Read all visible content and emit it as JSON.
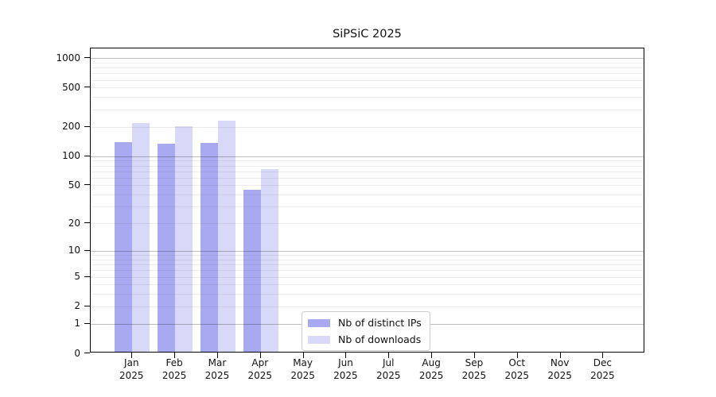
{
  "title": "SiPSiC 2025",
  "legend": {
    "items": [
      {
        "label": "Nb of distinct IPs",
        "color": "#a9a9f2"
      },
      {
        "label": "Nb of downloads",
        "color": "#d8d8f8"
      }
    ]
  },
  "axes": {
    "y_tick_labels": [
      "1000",
      "500",
      "200",
      "100",
      "50",
      "20",
      "10",
      "5",
      "2",
      "1",
      "0"
    ],
    "x_tick_line2": "2025"
  },
  "colors": {
    "series_ips": "#a9a9f2",
    "series_downloads": "#d8d8f8",
    "grid_minor": "rgba(0,0,0,0.07)",
    "grid_major": "rgba(0,0,0,0.26)",
    "spine": "#000000",
    "legend_border": "#cccccc",
    "background": "#ffffff"
  },
  "chart_data": {
    "type": "bar",
    "title": "SiPSiC 2025",
    "categories": [
      "Jan",
      "Feb",
      "Mar",
      "Apr",
      "May",
      "Jun",
      "Jul",
      "Aug",
      "Sep",
      "Oct",
      "Nov",
      "Dec"
    ],
    "category_year": "2025",
    "series": [
      {
        "name": "Nb of distinct IPs",
        "color": "#a9a9f2",
        "values": [
          135,
          129,
          132,
          43,
          0,
          0,
          0,
          0,
          0,
          0,
          0,
          0
        ]
      },
      {
        "name": "Nb of downloads",
        "color": "#d8d8f8",
        "values": [
          212,
          196,
          221,
          71,
          0,
          0,
          0,
          0,
          0,
          0,
          0,
          0
        ]
      }
    ],
    "xlabel": "",
    "ylabel": "",
    "y_scale": "log1p",
    "y_ticks": [
      1000,
      500,
      200,
      100,
      50,
      20,
      10,
      5,
      2,
      1,
      0
    ],
    "y_minor_gridlines": [
      2,
      3,
      4,
      5,
      6,
      7,
      8,
      9,
      20,
      30,
      40,
      50,
      60,
      70,
      80,
      90,
      200,
      300,
      400,
      500,
      600,
      700,
      800,
      900
    ],
    "y_major_gridlines": [
      1,
      10,
      100,
      1000
    ],
    "ylim": [
      0,
      1300
    ],
    "grid": "both",
    "grid_over_bars": true,
    "legend_position": "lower-center"
  }
}
